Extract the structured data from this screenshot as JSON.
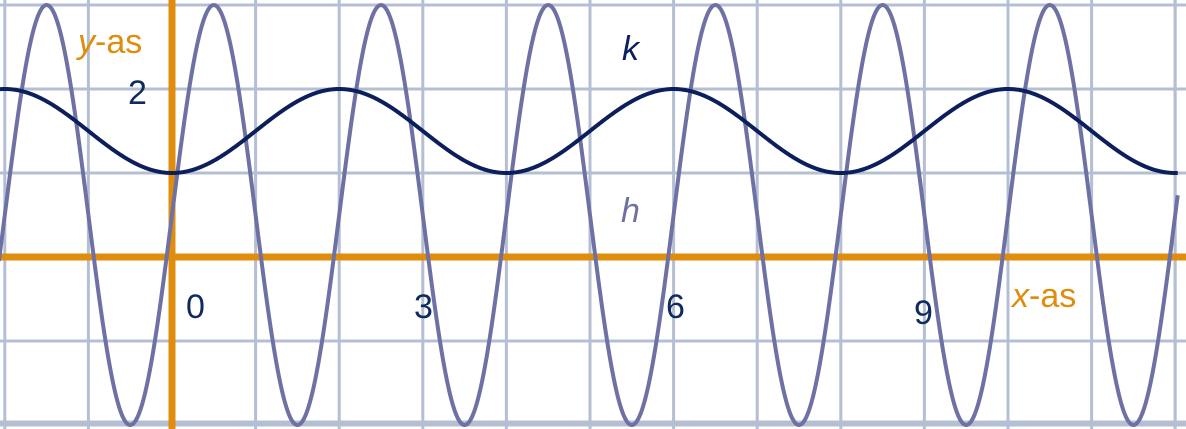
{
  "chart_data": {
    "type": "line",
    "xlabel": {
      "var": "x",
      "suffix": "-as"
    },
    "ylabel": {
      "var": "y",
      "suffix": "-as"
    },
    "x_ticks": [
      {
        "value": 0,
        "label": "0"
      },
      {
        "value": 3,
        "label": "3"
      },
      {
        "value": 6,
        "label": "6"
      },
      {
        "value": 9,
        "label": "9"
      }
    ],
    "y_ticks": [
      {
        "value": 2,
        "label": "2"
      }
    ],
    "xlim": [
      -2.05,
      12
    ],
    "ylim": [
      -2,
      3
    ],
    "grid": true,
    "grid_step": 1,
    "colors": {
      "grid": "#b4bfd4",
      "axes": "#e08c0c",
      "k": "#0c1f5c",
      "h": "#6e71a3",
      "tick_text": "#0f2a5e"
    },
    "series": [
      {
        "name": "k",
        "formula": "y = 1.5 - 0.5*cos(2*pi*x/4)",
        "x": [
          -2,
          -1.5,
          -1,
          -0.5,
          0,
          0.5,
          1,
          1.5,
          2,
          2.5,
          3,
          3.5,
          4,
          4.5,
          5,
          5.5,
          6,
          6.5,
          7,
          7.5,
          8,
          8.5,
          9,
          9.5,
          10,
          10.5,
          11,
          11.5,
          12
        ],
        "y": [
          2,
          1.85,
          1.5,
          1.15,
          1,
          1.15,
          1.5,
          1.85,
          2,
          1.85,
          1.5,
          1.15,
          1,
          1.15,
          1.5,
          1.85,
          2,
          1.85,
          1.5,
          1.15,
          1,
          1.15,
          1.5,
          1.85,
          2,
          1.85,
          1.5,
          1.15,
          1
        ]
      },
      {
        "name": "h",
        "formula": "y = 0.5 + 2.5*sin(2*pi*x/2)",
        "x": [
          -2,
          -1.5,
          -1,
          -0.5,
          0,
          0.5,
          1,
          1.5,
          2,
          2.5,
          3,
          3.5,
          4,
          4.5,
          5,
          5.5,
          6,
          6.5,
          7,
          7.5,
          8,
          8.5,
          9,
          9.5,
          10,
          10.5,
          11,
          11.5,
          12
        ],
        "y": [
          0.5,
          3,
          0.5,
          -2,
          0.5,
          3,
          0.5,
          -2,
          0.5,
          3,
          0.5,
          -2,
          0.5,
          3,
          0.5,
          -2,
          0.5,
          3,
          0.5,
          -2,
          0.5,
          3,
          0.5,
          -2,
          0.5,
          3,
          0.5,
          -2,
          0.5
        ]
      }
    ]
  }
}
